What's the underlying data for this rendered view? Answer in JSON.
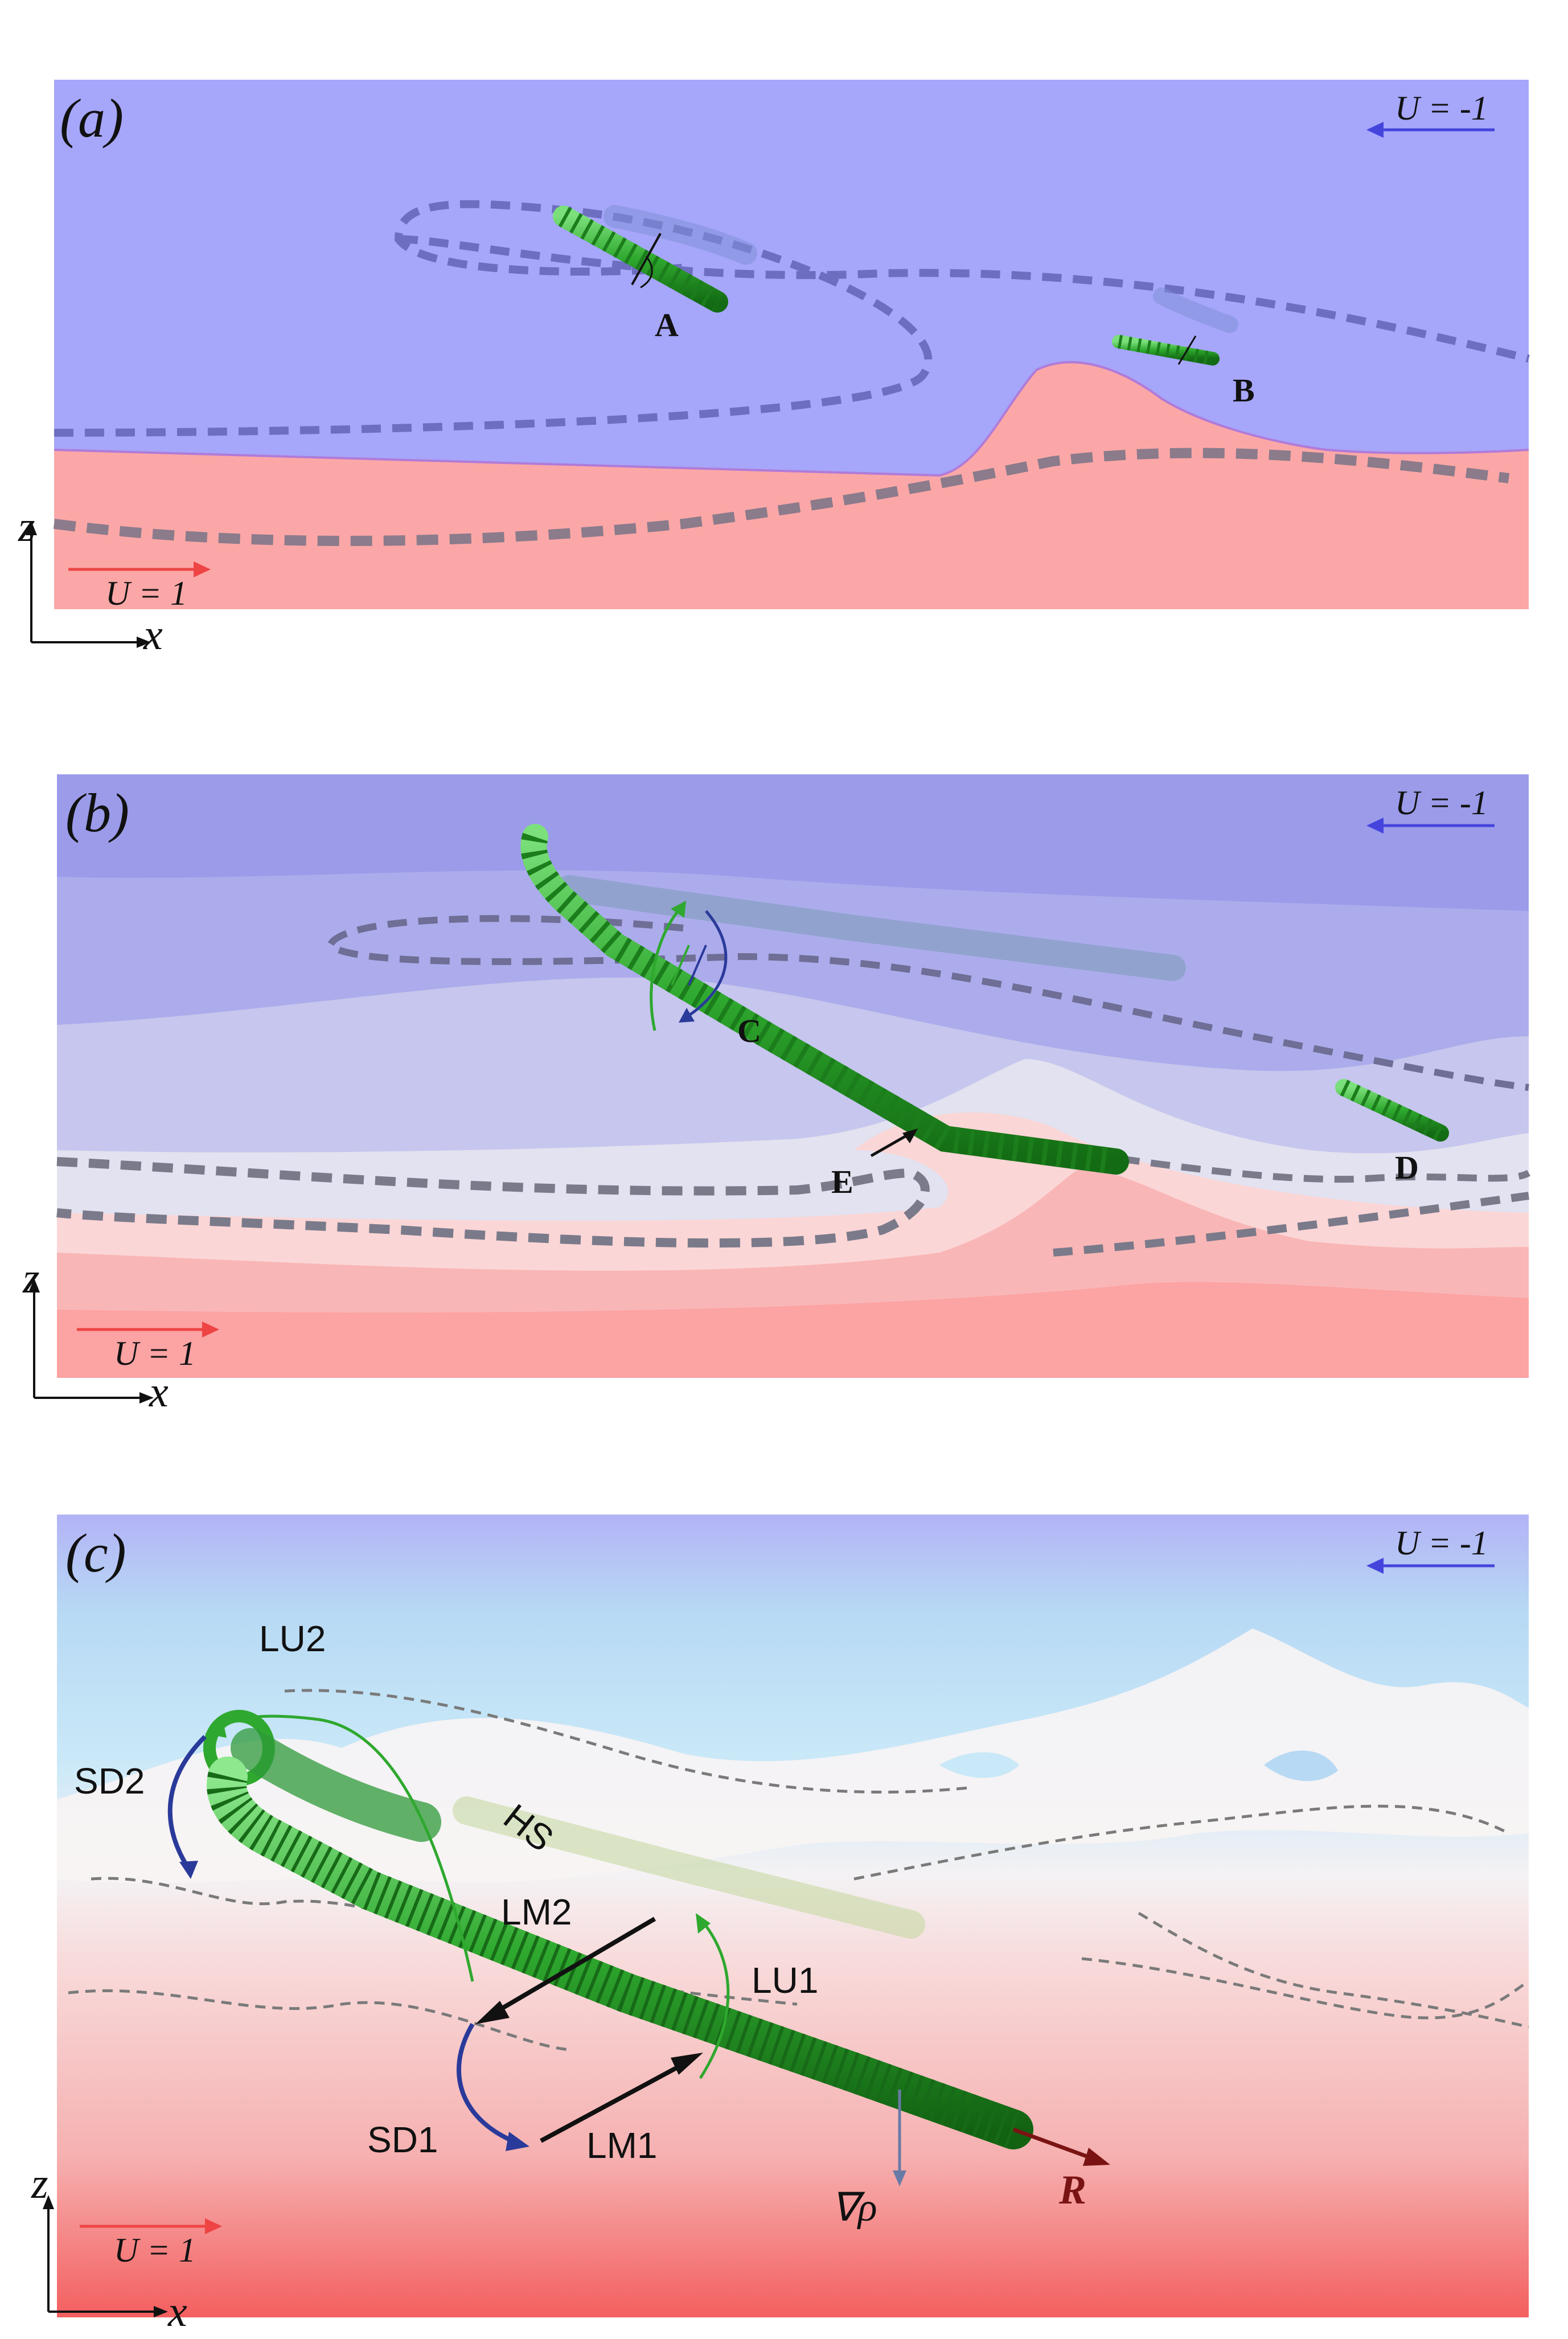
{
  "panel_a": {
    "label": "(a)",
    "u_top": "U = -1",
    "u_bottom": "U = 1",
    "axis_z": "z",
    "axis_x": "x",
    "marker_a": "A",
    "marker_b": "B",
    "colors": {
      "upper": "#a6a6fb",
      "lower": "#fca7a7",
      "fibre": "#35b535"
    }
  },
  "panel_b": {
    "label": "(b)",
    "u_top": "U = -1",
    "u_bottom": "U = 1",
    "axis_z": "z",
    "axis_x": "x",
    "marker_c": "C",
    "marker_d": "D",
    "marker_e": "E"
  },
  "panel_c": {
    "label": "(c)",
    "u_top": "U = -1",
    "u_bottom": "U = 1",
    "axis_z": "z",
    "axis_x": "x",
    "lu2": "LU2",
    "sd2": "SD2",
    "hs": "HS",
    "lm2": "LM2",
    "lu1": "LU1",
    "sd1": "SD1",
    "lm1": "LM1",
    "grad_rho": "∇ρ",
    "r_vec": "R"
  }
}
